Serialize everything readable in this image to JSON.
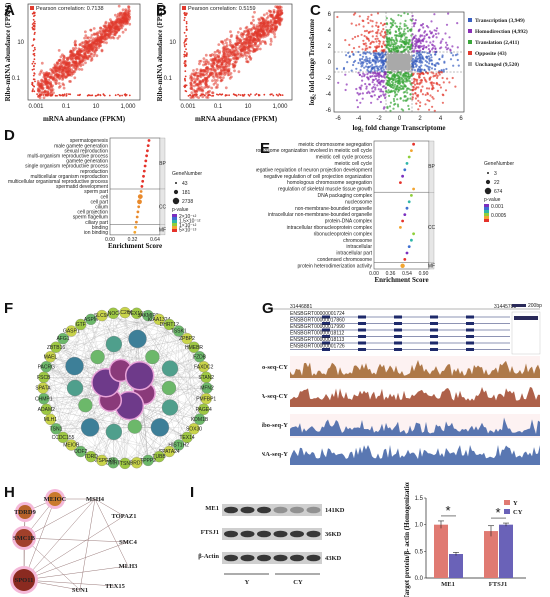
{
  "panel_labels": [
    "A",
    "B",
    "C",
    "D",
    "E",
    "F",
    "G",
    "H",
    "I"
  ],
  "panel_a": {
    "legend": "Pearson correlation: 0.7138",
    "xlabel": "mRNA abundance (FPKM)",
    "ylabel": "Ribo-mRNA abundance (FPKM)",
    "xticks": [
      "0.001",
      "0.1",
      "10",
      "1,000"
    ],
    "yticks": [
      "0.1",
      "10"
    ]
  },
  "panel_b": {
    "legend": "Pearson correlation: 0.5159",
    "xlabel": "mRNA abundance (FPKM)",
    "ylabel": "Ribo-mRNA abundance (FPKM)",
    "xticks": [
      "0.001",
      "0.1",
      "10",
      "1,000"
    ],
    "yticks": [
      "0.1",
      "10"
    ]
  },
  "panel_c": {
    "xlabel": "log₂ fold change Transcriptome",
    "ylabel": "log₂ fold change Translatome",
    "xticks": [
      "-6",
      "-4",
      "-2",
      "0",
      "2",
      "4",
      "6"
    ],
    "yticks": [
      "6",
      "4",
      "2",
      "0",
      "-2",
      "-4",
      "-6"
    ],
    "legend": [
      {
        "label": "Transcription (3,949)",
        "color": "#3b5fc0"
      },
      {
        "label": "Homodirection (4,992)",
        "color": "#8a2fb5"
      },
      {
        "label": "Translation (2,411)",
        "color": "#3aa63a"
      },
      {
        "label": "Opposite (43)",
        "color": "#e23b2f"
      },
      {
        "label": "Unchanged (9,520)",
        "color": "#a9a9a9"
      }
    ]
  },
  "panel_d": {
    "terms_bp": [
      "spermatogenesis",
      "male gamete generation",
      "sexual reproduction",
      "multi-organism reproductive process",
      "gamete generation",
      "single organism reproductive process",
      "reproduction",
      "multicellular organism reproduction",
      "multicellular organismal reproductive process",
      "spermatid development"
    ],
    "terms_cc": [
      "sperm part",
      "cell",
      "cell part",
      "cilium",
      "cell projection",
      "sperm flagellum",
      "ciliary part"
    ],
    "terms_mf": [
      "binding",
      "ion binding"
    ],
    "group_labels": [
      "BP",
      "CC",
      "MF"
    ],
    "xlabel": "Enrichment Score",
    "xticks": [
      "0.00",
      "0.32",
      "0.64"
    ],
    "legend_title_size": "GeneNumber",
    "size_values": [
      "43",
      "181",
      "2738"
    ],
    "legend_title_color": "p-value",
    "color_ticks": [
      "2×10⁻¹²",
      "1.5×10⁻¹²",
      "1×10⁻¹²",
      "5×10⁻¹³"
    ]
  },
  "panel_e": {
    "terms_bp": [
      "meiotic chromosome segregation",
      "chromosome organization involved in meiotic cell cycle",
      "meiotic cell cycle process",
      "meiotic cell cycle",
      "negative regulation of neuron projection development",
      "negative regulation of cell projection organization",
      "homologous chromosome segregation",
      "regulation of skeletal muscle tissue growth"
    ],
    "terms_cc": [
      "DNA packaging complex",
      "nucleosome",
      "non-membrane-bounded organelle",
      "intracellular non-membrane-bounded organelle",
      "protein-DNA complex",
      "intracellular ribonucleoprotein complex",
      "ribonucleoprotein complex",
      "chromosome",
      "intracellular",
      "intracellular part",
      "condensed chromosome"
    ],
    "terms_mf": [
      "protein heterodimerization activity"
    ],
    "group_labels": [
      "BP",
      "CC",
      "MF"
    ],
    "xlabel": "Enrichment Score",
    "xticks": [
      "0.00",
      "0.36",
      "0.54",
      "0.90"
    ],
    "legend_title_size": "GeneNumber",
    "size_values": [
      "3",
      "22",
      "674"
    ],
    "legend_title_color": "p-value",
    "color_ticks": [
      "0.001",
      "0.0005"
    ]
  },
  "panel_f": {
    "nodes": [
      "SLC26A3",
      "TEX101",
      "JAKMIP3",
      "KIAA1324",
      "DHRT12",
      "TSSK1",
      "ZPBP2",
      "HMEBR",
      "FZDB",
      "FAXDC2",
      "STAN2",
      "MFN2",
      "PMFBP1",
      "PAGE4",
      "KDM1B",
      "SOX30",
      "TEX14",
      "HIST1H2",
      "SPATA24",
      "TUBB",
      "TPPP2",
      "BRDT",
      "TSN",
      "DMRT",
      "CATSPER4",
      "TDRD",
      "ODF2",
      "MEIOB",
      "CCDC155",
      "TSN1",
      "MLH1",
      "ADAM2",
      "CHMP1",
      "SPATA",
      "FSCB",
      "PACRG",
      "MAEL",
      "ZBTB16",
      "AFG1",
      "GASP1",
      "GTF",
      "ASPM",
      "SLC9A",
      "NOC"
    ]
  },
  "panel_g": {
    "gene_ids": [
      "ENSBGRT00000001724",
      "ENSBGRT00000017860",
      "ENSBGRT00000017990",
      "ENSBGRT00000018112",
      "ENSBGRT00000018113",
      "ENSBGRT00000001726"
    ],
    "coord_left": "31446881",
    "coord_right": "31445783",
    "scale": "200bp",
    "tracks": [
      "Ribo-seq-CY",
      "RNA-seq-CY",
      "Ribo-seq-Y",
      "RNA-seq-Y"
    ],
    "track_colors": [
      "#a0632a",
      "#a0452a",
      "#3c5fa5",
      "#3c5fa5"
    ]
  },
  "panel_h": {
    "nodes": [
      "MEIOC",
      "MSH4",
      "TDRD9",
      "TOPAZ1",
      "SMC1B",
      "SMC4",
      "MLH3",
      "SPO11",
      "TEX15",
      "SUN1"
    ]
  },
  "panel_i": {
    "blot_labels": [
      "ME1",
      "FTSJ1",
      "β-Actin"
    ],
    "blot_sizes": [
      "141KD",
      "36KD",
      "43KD"
    ],
    "group_labels": [
      "Y",
      "CY"
    ],
    "chart_data": {
      "type": "bar",
      "categories": [
        "ME1",
        "FTSJ1"
      ],
      "series": [
        {
          "name": "Y",
          "values": [
            1.0,
            0.88
          ],
          "errors": [
            0.07,
            0.1
          ],
          "color": "#e07a72"
        },
        {
          "name": "CY",
          "values": [
            0.45,
            1.0
          ],
          "errors": [
            0.03,
            0.03
          ],
          "color": "#6a62b8"
        }
      ],
      "ylabel": "Target protein/β- actin (Homogenization)",
      "ylim": [
        0,
        1.5
      ],
      "yticks": [
        "0.0",
        "0.5",
        "1.0",
        "1.5"
      ],
      "significance": [
        "*",
        "*"
      ],
      "legend": "top-right"
    }
  }
}
